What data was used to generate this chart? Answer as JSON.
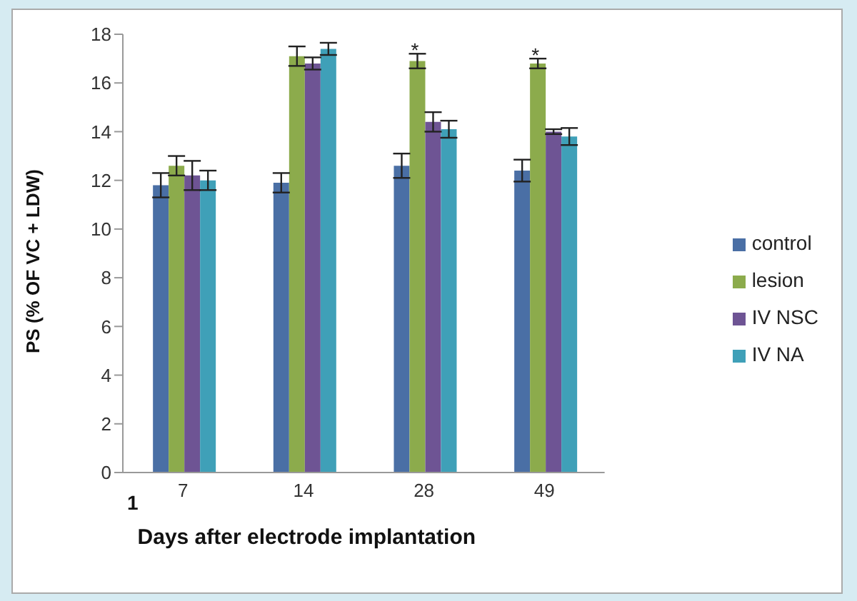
{
  "chart_data": {
    "type": "bar",
    "xlabel": "Days after electrode implantation",
    "ylabel": "PS (% OF VC + LDW)",
    "categories": [
      "7",
      "14",
      "28",
      "49"
    ],
    "series": [
      {
        "name": "control",
        "color": "#4a6fa5",
        "values": [
          11.8,
          11.9,
          12.6,
          12.4
        ],
        "errors": [
          0.5,
          0.4,
          0.5,
          0.45
        ]
      },
      {
        "name": "lesion",
        "color": "#8cab4c",
        "values": [
          12.6,
          17.1,
          16.9,
          16.8
        ],
        "errors": [
          0.4,
          0.4,
          0.3,
          0.2
        ]
      },
      {
        "name": "IV NSC",
        "color": "#6e5494",
        "values": [
          12.2,
          16.8,
          14.4,
          14.0
        ],
        "errors": [
          0.6,
          0.25,
          0.4,
          0.1
        ]
      },
      {
        "name": "IV NA",
        "color": "#3fa0b8",
        "values": [
          12.0,
          17.4,
          14.1,
          13.8
        ],
        "errors": [
          0.4,
          0.25,
          0.35,
          0.35
        ]
      }
    ],
    "ylim": [
      0,
      18
    ],
    "yticks": [
      0,
      2,
      4,
      6,
      8,
      10,
      12,
      14,
      16,
      18
    ],
    "grid": false,
    "legend": "right",
    "annotations": [
      "1",
      {
        "text": "*",
        "x": "28",
        "y": 17.4
      },
      {
        "text": "*",
        "x": "49",
        "y": 17.2
      }
    ]
  }
}
